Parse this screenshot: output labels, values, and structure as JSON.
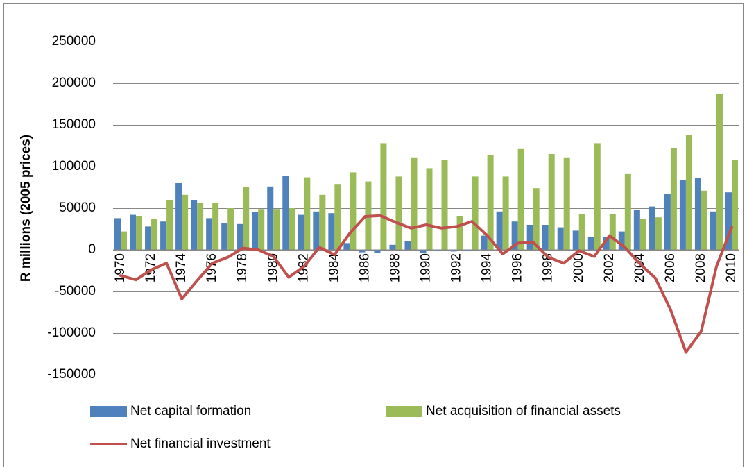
{
  "chart_data": {
    "type": "bar_line",
    "y_axis_label": "R millions (2005 prices)",
    "categories": [
      "1970",
      null,
      "1972",
      null,
      "1974",
      null,
      "1976",
      null,
      "1978",
      null,
      "1980",
      null,
      "1982",
      null,
      "1984",
      null,
      "1986",
      null,
      "1988",
      null,
      "1990",
      null,
      "1992",
      null,
      "1994",
      null,
      "1996",
      null,
      "1998",
      null,
      "2000",
      null,
      "2002",
      null,
      "2004",
      null,
      "2006",
      null,
      "2008",
      null,
      "2010"
    ],
    "series": [
      {
        "name": "Net capital formation",
        "type": "bar",
        "color": "#4f81bd",
        "values": [
          38000,
          42000,
          28000,
          34000,
          80000,
          60000,
          38000,
          32000,
          31000,
          45000,
          76000,
          89000,
          42000,
          46000,
          44000,
          8000,
          -3000,
          -4000,
          6000,
          10000,
          -4000,
          -1000,
          -2000,
          -1000,
          17000,
          46000,
          34000,
          30000,
          30000,
          27000,
          23000,
          15000,
          15000,
          22000,
          48000,
          52000,
          67000,
          84000,
          86000,
          46000,
          69000
        ]
      },
      {
        "name": "Net acquisition of financial assets",
        "type": "bar",
        "color": "#9bbb59",
        "values": [
          22000,
          40000,
          37000,
          60000,
          66000,
          56000,
          56000,
          50000,
          75000,
          49000,
          49000,
          50000,
          87000,
          66000,
          79000,
          93000,
          82000,
          128000,
          88000,
          111000,
          98000,
          108000,
          40000,
          88000,
          114000,
          88000,
          121000,
          74000,
          115000,
          111000,
          43000,
          128000,
          43000,
          91000,
          37000,
          39000,
          122000,
          138000,
          71000,
          187000,
          108000
        ]
      },
      {
        "name": "Net financial investment",
        "type": "line",
        "color": "#c0504d",
        "values": [
          -31000,
          -36000,
          -24000,
          -16000,
          -59000,
          -37000,
          -16000,
          -9000,
          2000,
          0,
          -8000,
          -33000,
          -20000,
          3000,
          -6000,
          20000,
          40000,
          41000,
          33000,
          26000,
          30000,
          26000,
          28000,
          34000,
          17000,
          -5000,
          8000,
          9000,
          -9000,
          -16000,
          -1000,
          -8000,
          17000,
          3000,
          -17000,
          -34000,
          -72000,
          -123000,
          -98000,
          -20000,
          27000
        ]
      }
    ],
    "ylim": [
      -150000,
      250000
    ],
    "yticks": [
      -150000,
      -100000,
      -50000,
      0,
      50000,
      100000,
      150000,
      200000,
      250000
    ],
    "grid": true
  }
}
